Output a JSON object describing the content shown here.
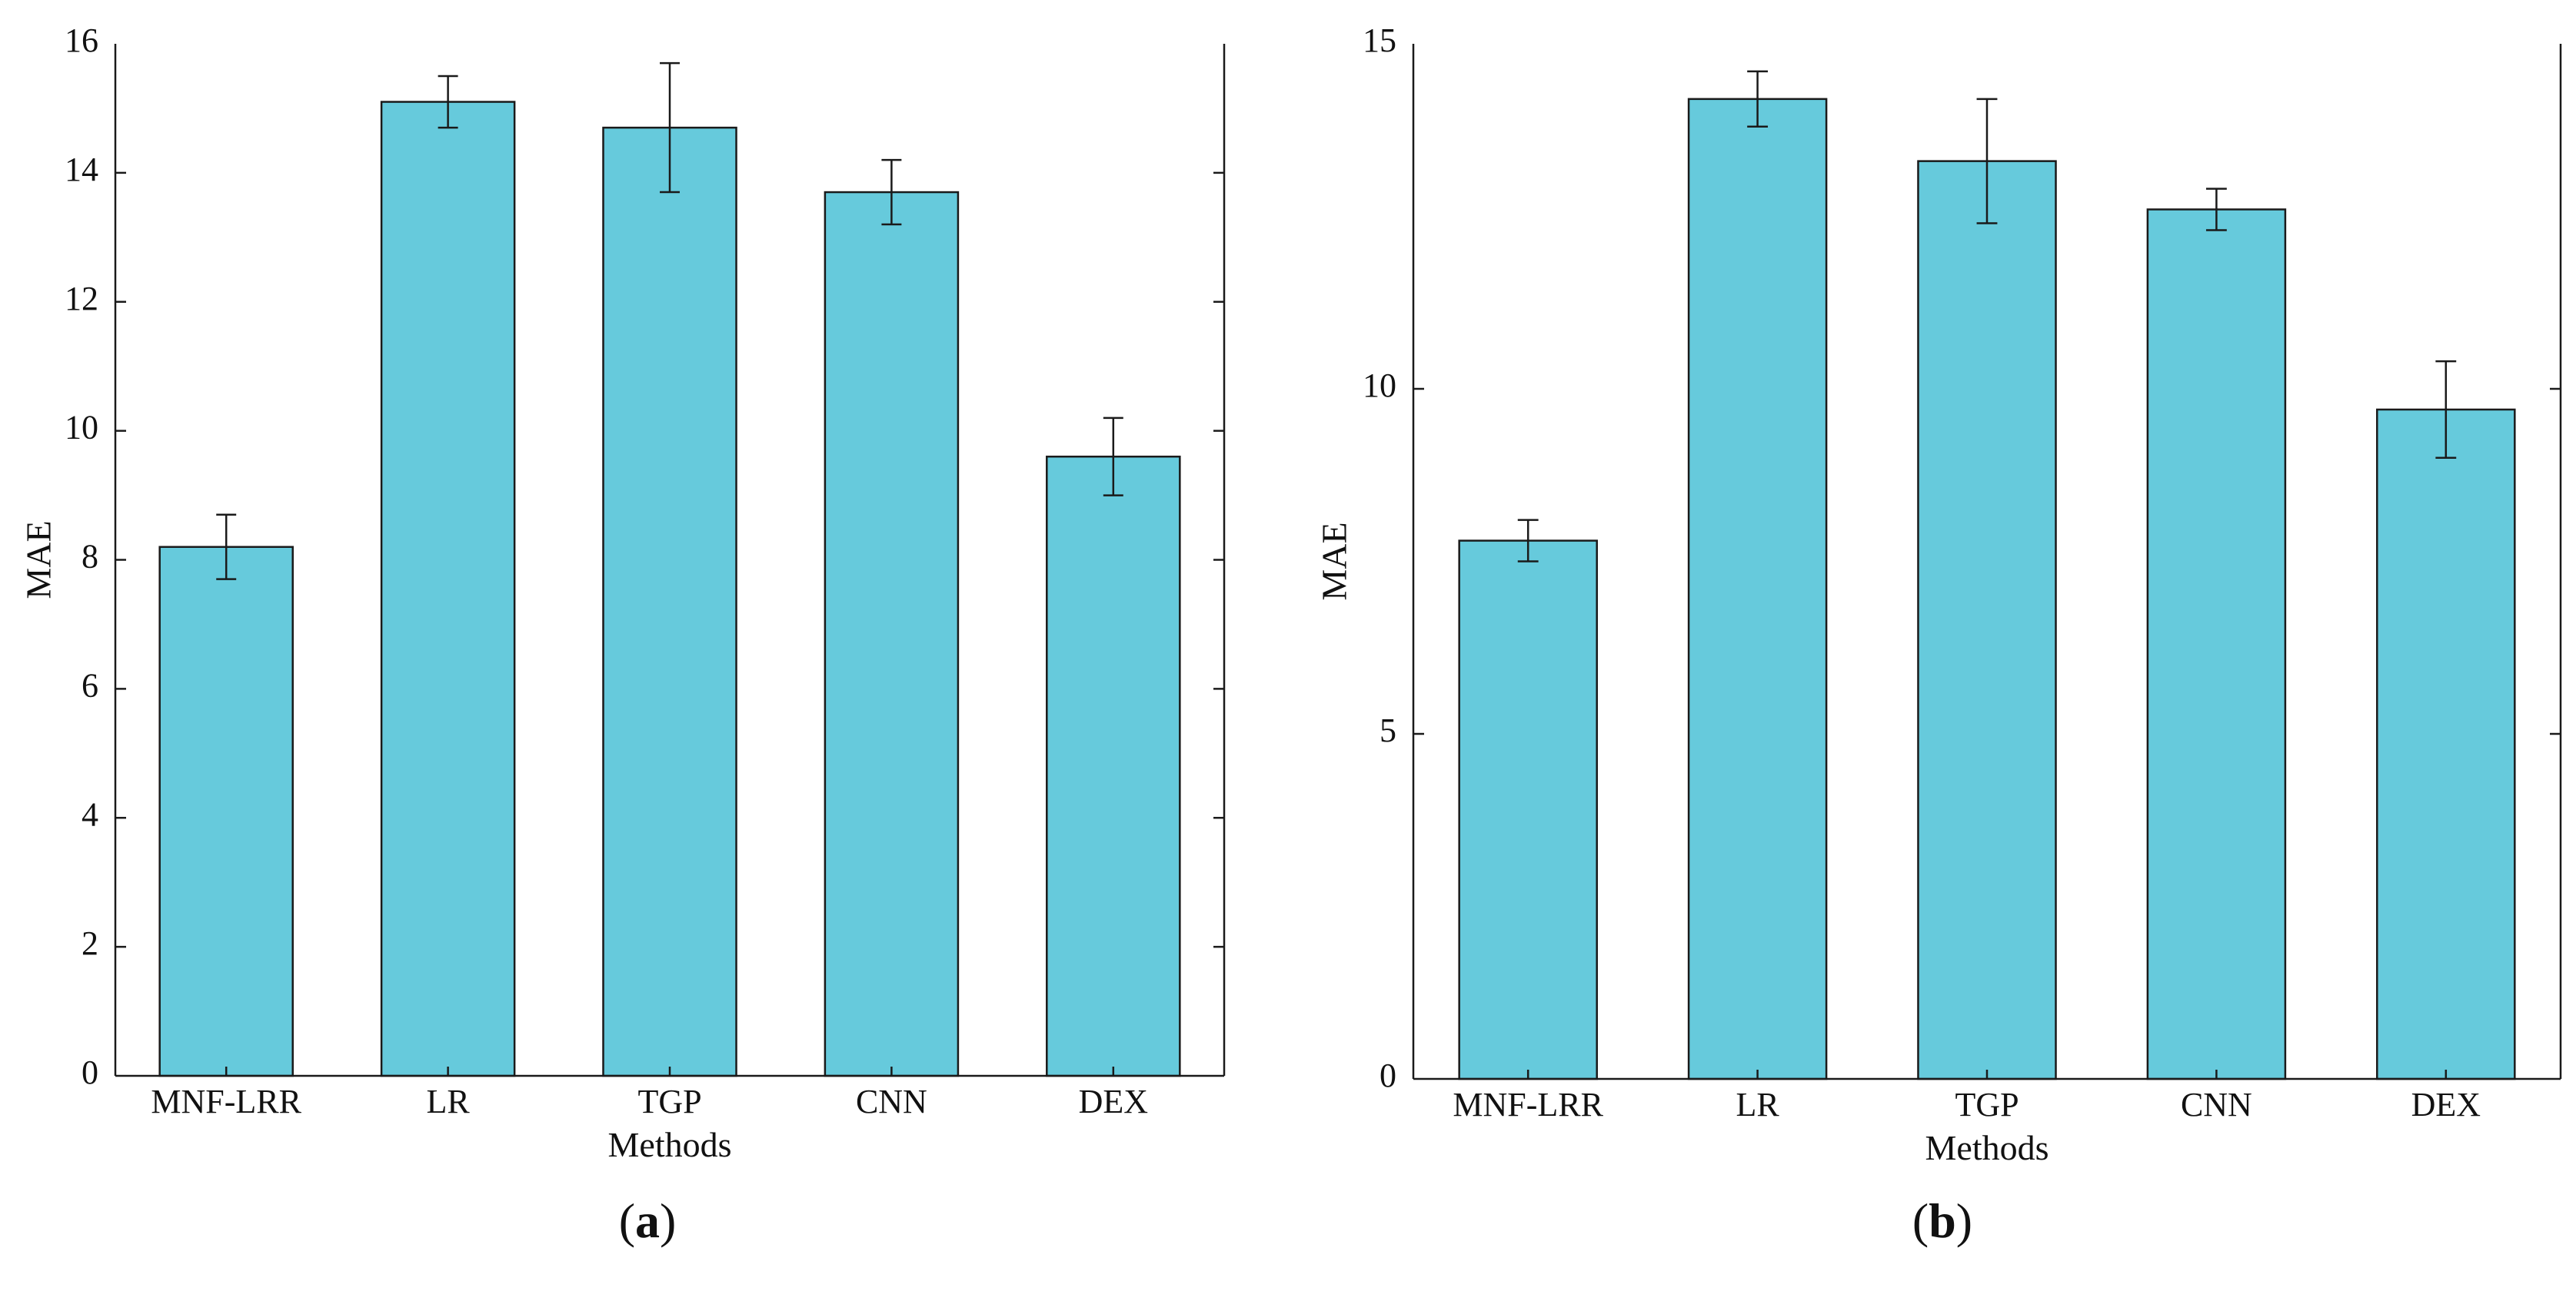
{
  "chart_data": [
    {
      "type": "bar",
      "panel_label": "(a)",
      "panel_letter": "a",
      "title": "",
      "xlabel": "Methods",
      "ylabel": "MAE",
      "categories": [
        "MNF-LRR",
        "LR",
        "TGP",
        "CNN",
        "DEX"
      ],
      "values": [
        8.2,
        15.1,
        14.7,
        13.7,
        9.6
      ],
      "errors": [
        0.5,
        0.4,
        1.0,
        0.5,
        0.6
      ],
      "ylim": [
        0,
        16
      ],
      "yticks": [
        0,
        2,
        4,
        6,
        8,
        10,
        12,
        14,
        16
      ],
      "bar_color": "#66CADC",
      "grid": false
    },
    {
      "type": "bar",
      "panel_label": "(b)",
      "panel_letter": "b",
      "title": "",
      "xlabel": "Methods",
      "ylabel": "MAE",
      "categories": [
        "MNF-LRR",
        "LR",
        "TGP",
        "CNN",
        "DEX"
      ],
      "values": [
        7.8,
        14.2,
        13.3,
        12.6,
        9.7
      ],
      "errors": [
        0.3,
        0.4,
        0.9,
        0.3,
        0.7
      ],
      "ylim": [
        0,
        15
      ],
      "yticks": [
        0,
        5,
        10,
        15
      ],
      "bar_color": "#66CADC",
      "grid": false
    }
  ]
}
